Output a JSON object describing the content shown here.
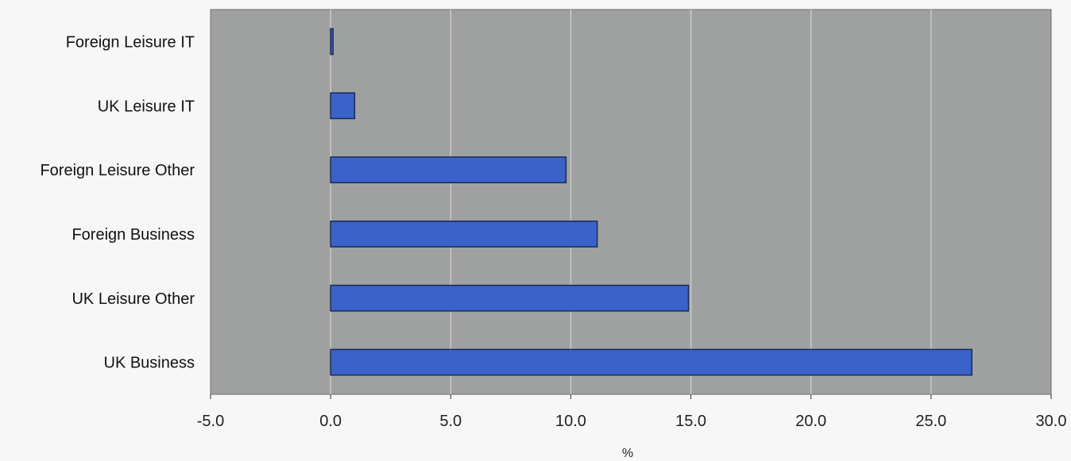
{
  "chart_data": {
    "type": "bar",
    "orientation": "horizontal",
    "categories": [
      "Foreign Leisure IT",
      "UK Leisure IT",
      "Foreign Leisure Other",
      "Foreign Business",
      "UK Leisure Other",
      "UK Business"
    ],
    "values": [
      0.1,
      1.0,
      9.8,
      11.1,
      14.9,
      26.7
    ],
    "xlim": [
      -5,
      30
    ],
    "xticks": [
      -5,
      0,
      5,
      10,
      15,
      20,
      25,
      30
    ],
    "xtick_labels": [
      "-5.0",
      "0.0",
      "5.0",
      "10.0",
      "15.0",
      "20.0",
      "25.0",
      "30.0"
    ],
    "xlabel": "%",
    "ylabel": "",
    "title": "",
    "grid": "vertical",
    "legend": "none",
    "colors": {
      "bar": "#3a62c9",
      "bar_stroke": "#1b2a55",
      "plot_background": "#9fa1a1",
      "grid": "#c9c9c9"
    }
  }
}
